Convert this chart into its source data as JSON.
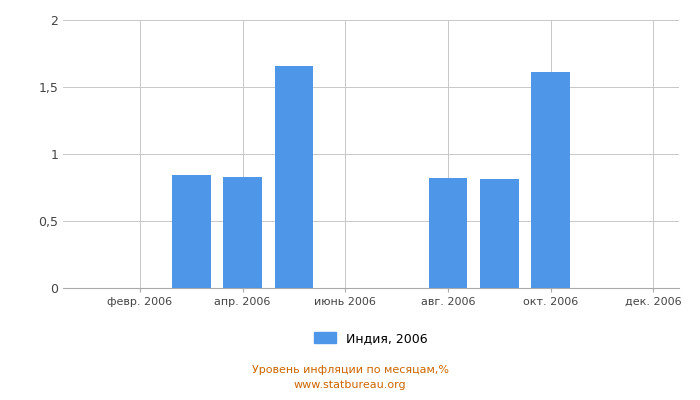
{
  "months": [
    1,
    2,
    3,
    4,
    5,
    6,
    7,
    8,
    9,
    10,
    11,
    12
  ],
  "values": [
    0,
    0,
    0.84,
    0.83,
    1.66,
    0,
    0,
    0.82,
    0.81,
    1.61,
    0,
    0
  ],
  "bar_color": "#4d96e8",
  "xtick_positions": [
    2,
    4,
    6,
    8,
    10,
    12
  ],
  "xtick_labels": [
    "февр. 2006",
    "апр. 2006",
    "июнь 2006",
    "авг. 2006",
    "окт. 2006",
    "дек. 2006"
  ],
  "ylim": [
    0,
    2
  ],
  "ytick_positions": [
    0,
    0.5,
    1.0,
    1.5,
    2.0
  ],
  "ytick_labels": [
    "0",
    "0,5",
    "1",
    "1,5",
    "2"
  ],
  "legend_label": "Индия, 2006",
  "footer_label": "Уровень инфляции по месяцам,%\nwww.statbureau.org",
  "background_color": "#ffffff",
  "grid_color": "#c8c8c8",
  "bar_width": 0.75
}
